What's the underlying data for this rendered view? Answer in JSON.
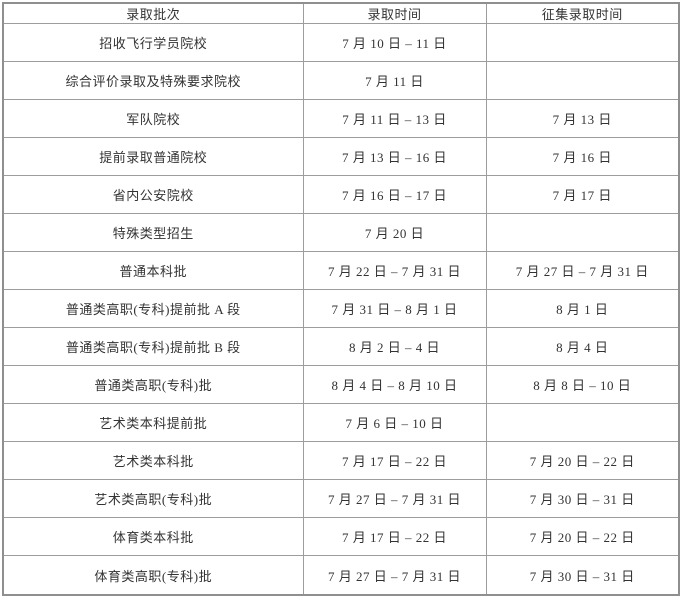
{
  "table": {
    "columns": [
      "录取批次",
      "录取时间",
      "征集录取时间"
    ],
    "rows": [
      [
        "招收飞行学员院校",
        "7 月 10 日 – 11 日",
        ""
      ],
      [
        "综合评价录取及特殊要求院校",
        "7 月 11 日",
        ""
      ],
      [
        "军队院校",
        "7 月 11 日 – 13 日",
        "7 月 13 日"
      ],
      [
        "提前录取普通院校",
        "7 月 13 日 – 16 日",
        "7 月 16 日"
      ],
      [
        "省内公安院校",
        "7 月 16 日 – 17 日",
        "7 月 17 日"
      ],
      [
        "特殊类型招生",
        "7 月 20 日",
        ""
      ],
      [
        "普通本科批",
        "7 月 22 日 – 7 月 31 日",
        "7 月 27 日 – 7 月 31 日"
      ],
      [
        "普通类高职(专科)提前批 A 段",
        "7 月 31 日 – 8 月 1 日",
        "8 月 1 日"
      ],
      [
        "普通类高职(专科)提前批 B 段",
        "8 月 2 日 – 4 日",
        "8 月 4 日"
      ],
      [
        "普通类高职(专科)批",
        "8 月 4 日 – 8 月 10 日",
        "8 月 8 日 – 10 日"
      ],
      [
        "艺术类本科提前批",
        "7 月 6 日 – 10 日",
        ""
      ],
      [
        "艺术类本科批",
        "7 月 17 日 – 22 日",
        "7 月 20 日 – 22 日"
      ],
      [
        "艺术类高职(专科)批",
        "7 月 27 日 – 7 月 31 日",
        "7 月 30 日 – 31 日"
      ],
      [
        "体育类本科批",
        "7 月 17 日 – 22 日",
        "7 月 20 日 – 22 日"
      ],
      [
        "体育类高职(专科)批",
        "7 月 27 日 – 7 月 31 日",
        "7 月 30 日 – 31 日"
      ]
    ],
    "colors": {
      "border": "#9d9d9d",
      "outer_border": "#8f8f8f",
      "text": "#333333",
      "background": "#ffffff"
    }
  }
}
